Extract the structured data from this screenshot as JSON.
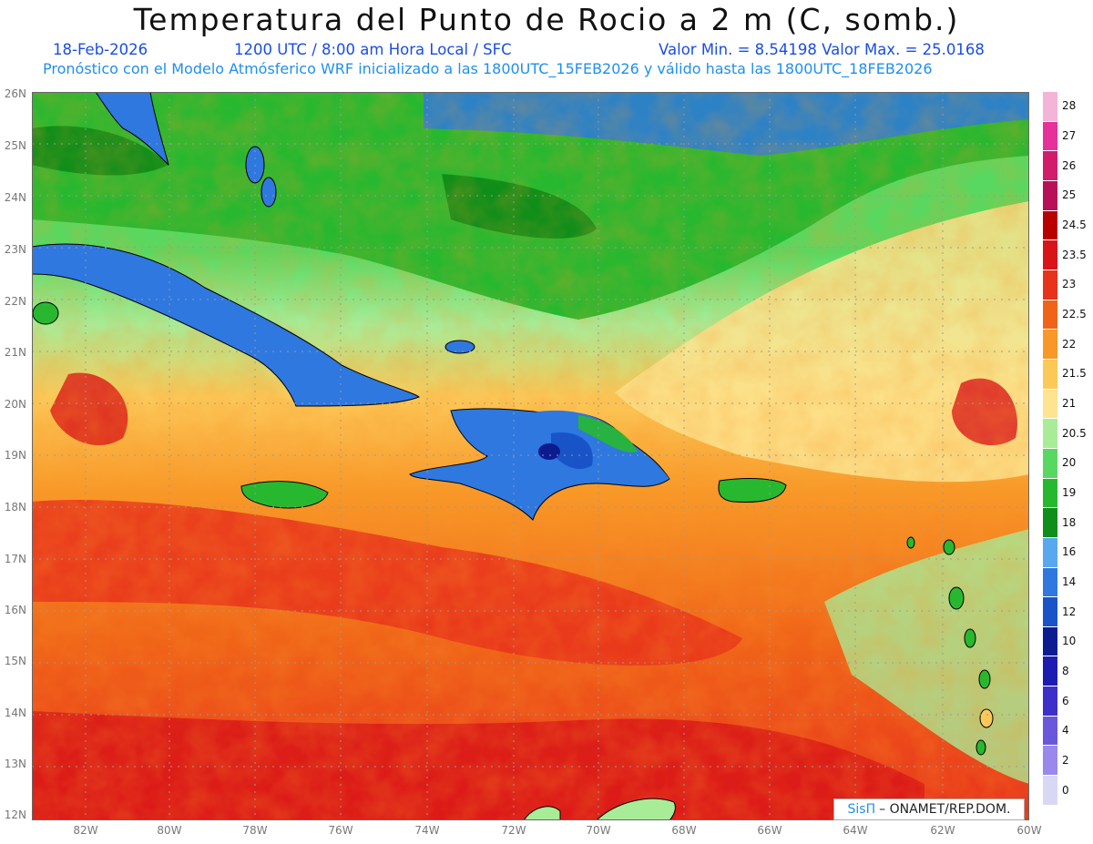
{
  "title": "Temperatura del Punto de Rocio a 2 m (C, somb.)",
  "header": {
    "date": "18-Feb-2026",
    "time": "1200 UTC / 8:00 am Hora Local / SFC",
    "minmax": "Valor Min. = 8.54198  Valor Max. = 25.0168",
    "forecast": "Pronóstico con el Modelo Atmósferico WRF inicializado a las 1800UTC_15FEB2026 y válido hasta las  1800UTC_18FEB2026"
  },
  "axes": {
    "lat_labels": [
      "26N",
      "25N",
      "24N",
      "23N",
      "22N",
      "21N",
      "20N",
      "19N",
      "18N",
      "17N",
      "16N",
      "15N",
      "14N",
      "13N",
      "12N"
    ],
    "lon_labels": [
      "82W",
      "80W",
      "78W",
      "76W",
      "74W",
      "72W",
      "70W",
      "68W",
      "66W",
      "64W",
      "62W",
      "60W"
    ]
  },
  "colorbar": {
    "levels": [
      "28",
      "27",
      "26",
      "25",
      "24.5",
      "23.5",
      "23",
      "22.5",
      "22",
      "21.5",
      "21",
      "20.5",
      "20",
      "19",
      "18",
      "16",
      "14",
      "12",
      "10",
      "8",
      "6",
      "4",
      "2",
      "0"
    ],
    "colors": [
      "#f4b4d8",
      "#e8309a",
      "#d11c6c",
      "#b81058",
      "#b80000",
      "#d81418",
      "#e8321c",
      "#f06418",
      "#f89828",
      "#fcc858",
      "#fde490",
      "#a8ec98",
      "#58d860",
      "#28b830",
      "#0f8e1a",
      "#58a8f0",
      "#2e78e0",
      "#1854c8",
      "#0c1c90",
      "#1c1cb0",
      "#3c30c8",
      "#6a58dc",
      "#9a88ec",
      "#d8d8f4"
    ]
  },
  "credit": {
    "brand": "SisΠ",
    "text": "– ONAMET/REP.DOM."
  }
}
